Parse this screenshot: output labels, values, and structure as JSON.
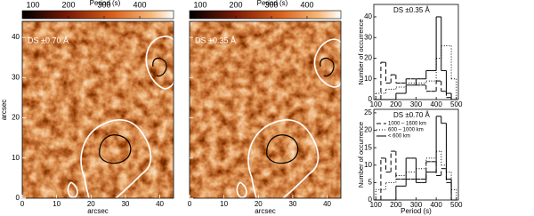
{
  "chart_data": [
    {
      "type": "image",
      "title": "DS ±0.70 Å",
      "colorbar_label": "Period (s)",
      "clim": [
        70,
        495
      ],
      "cticks": [
        100,
        200,
        300,
        400
      ],
      "xlim": [
        0,
        44
      ],
      "ylim": [
        0,
        44
      ],
      "xticks": [
        0,
        10,
        20,
        30,
        40
      ],
      "yticks": [
        0,
        10,
        20,
        30,
        40
      ],
      "xlabel": "arcsec",
      "ylabel": "arcsec"
    },
    {
      "type": "image",
      "title": "DS ±0.35 Å",
      "colorbar_label": "Period (s)",
      "clim": [
        70,
        495
      ],
      "cticks": [
        100,
        200,
        300,
        400
      ],
      "xlim": [
        0,
        44
      ],
      "ylim": [
        0,
        44
      ],
      "xticks": [
        0,
        10,
        20,
        30,
        40
      ],
      "yticks": [
        0,
        10,
        20,
        30,
        40
      ],
      "xlabel": "arcsec"
    },
    {
      "type": "histogram",
      "title": "DS ±0.35 Å",
      "ylabel": "Number of occurrence",
      "bins": [
        100,
        125,
        150,
        175,
        200,
        225,
        250,
        275,
        300,
        325,
        350,
        375,
        400,
        425,
        450,
        475,
        500
      ],
      "xlim": [
        90,
        510
      ],
      "xticks": [
        100,
        200,
        300,
        400,
        500
      ],
      "ylim": [
        0,
        46
      ],
      "yticks": [
        0,
        10,
        20,
        30,
        40
      ],
      "series": [
        {
          "color": "#000000",
          "dash": "dashed",
          "values": [
            0,
            18,
            8,
            12,
            8,
            8,
            10,
            10,
            7,
            7,
            4,
            4,
            9,
            4,
            1,
            0
          ]
        },
        {
          "color": "#000000",
          "dash": "dotted",
          "values": [
            3,
            3,
            5,
            5,
            6,
            6,
            8,
            8,
            8,
            8,
            9,
            9,
            20,
            26,
            26,
            10
          ]
        },
        {
          "color": "#000000",
          "dash": "solid",
          "values": [
            0,
            0,
            0,
            0,
            3,
            3,
            7,
            7,
            10,
            10,
            14,
            14,
            40,
            14,
            3,
            0
          ]
        }
      ]
    },
    {
      "type": "histogram",
      "title": "DS ±0.70 Å",
      "ylabel": "Number of occurrence",
      "xlabel": "Period (s)",
      "legend": "upper left",
      "bins": [
        100,
        125,
        150,
        175,
        200,
        225,
        250,
        275,
        300,
        325,
        350,
        375,
        400,
        425,
        450,
        475,
        500
      ],
      "xlim": [
        90,
        510
      ],
      "xticks": [
        100,
        200,
        300,
        400,
        500
      ],
      "ylim": [
        0,
        26
      ],
      "yticks": [
        0,
        5,
        10,
        15,
        20,
        25
      ],
      "series": [
        {
          "name": "1000 – 1600 km",
          "color": "#000000",
          "dash": "dashed",
          "values": [
            0,
            12,
            8,
            14,
            6,
            6,
            6,
            6,
            6,
            6,
            11,
            11,
            7,
            9,
            5,
            0
          ]
        },
        {
          "name": "600 – 1000 km",
          "color": "#000000",
          "dash": "dotted",
          "values": [
            3,
            3,
            5,
            5,
            7,
            7,
            8,
            8,
            9,
            9,
            12,
            12,
            14,
            10,
            8,
            3
          ]
        },
        {
          "name": "< 600 km",
          "color": "#000000",
          "dash": "solid",
          "values": [
            0,
            0,
            0,
            0,
            4,
            4,
            12,
            12,
            5,
            5,
            8,
            8,
            24,
            22,
            6,
            0
          ]
        }
      ]
    }
  ]
}
